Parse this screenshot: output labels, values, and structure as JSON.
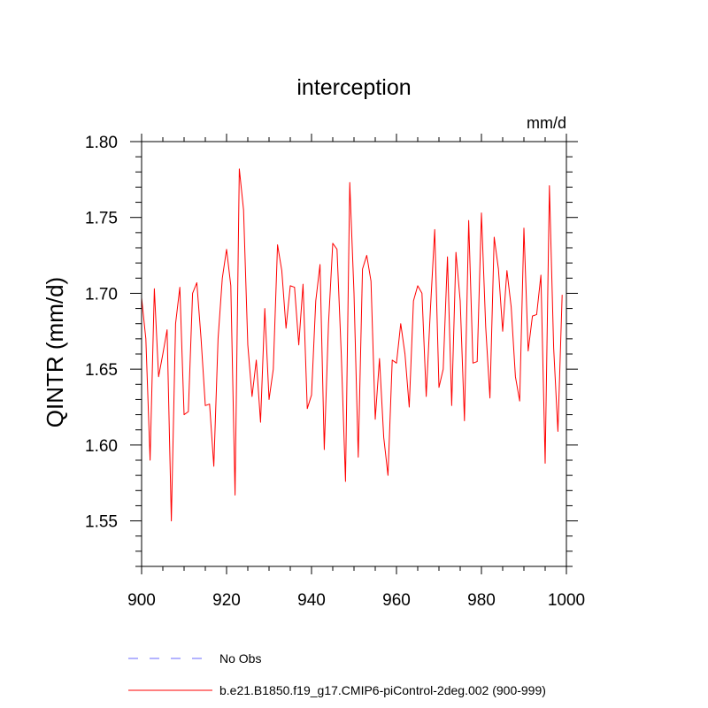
{
  "chart_data": {
    "type": "line",
    "title": "interception",
    "units_label": "mm/d",
    "ylabel": "QINTR  (mm/d)",
    "xlabel": "",
    "xlim": [
      900,
      1000
    ],
    "ylim": [
      1.52,
      1.8
    ],
    "x_ticks": [
      900,
      920,
      940,
      960,
      980,
      1000
    ],
    "x_tick_labels": [
      "900",
      "920",
      "940",
      "960",
      "980",
      "1000"
    ],
    "y_ticks": [
      1.55,
      1.6,
      1.65,
      1.7,
      1.75,
      1.8
    ],
    "y_tick_labels": [
      "1.55",
      "1.60",
      "1.65",
      "1.70",
      "1.75",
      "1.80"
    ],
    "grid": false,
    "legend_placement": "bottom",
    "legend": [
      {
        "label": "No Obs",
        "color": "#6a6aff",
        "style": "dashed"
      },
      {
        "label": "b.e21.B1850.f19_g17.CMIP6-piControl-2deg.002 (900-999)",
        "color": "#ff0000",
        "style": "solid"
      }
    ],
    "series": [
      {
        "name": "b.e21.B1850.f19_g17.CMIP6-piControl-2deg.002 (900-999)",
        "color": "#ff0000",
        "x": [
          900,
          901,
          902,
          903,
          904,
          905,
          906,
          907,
          908,
          909,
          910,
          911,
          912,
          913,
          914,
          915,
          916,
          917,
          918,
          919,
          920,
          921,
          922,
          923,
          924,
          925,
          926,
          927,
          928,
          929,
          930,
          931,
          932,
          933,
          934,
          935,
          936,
          937,
          938,
          939,
          940,
          941,
          942,
          943,
          944,
          945,
          946,
          947,
          948,
          949,
          950,
          951,
          952,
          953,
          954,
          955,
          956,
          957,
          958,
          959,
          960,
          961,
          962,
          963,
          964,
          965,
          966,
          967,
          968,
          969,
          970,
          971,
          972,
          973,
          974,
          975,
          976,
          977,
          978,
          979,
          980,
          981,
          982,
          983,
          984,
          985,
          986,
          987,
          988,
          989,
          990,
          991,
          992,
          993,
          994,
          995,
          996,
          997,
          998,
          999
        ],
        "values": [
          1.697,
          1.67,
          1.59,
          1.703,
          1.645,
          1.66,
          1.676,
          1.55,
          1.68,
          1.704,
          1.62,
          1.622,
          1.7,
          1.707,
          1.67,
          1.626,
          1.627,
          1.586,
          1.67,
          1.71,
          1.729,
          1.705,
          1.567,
          1.782,
          1.755,
          1.666,
          1.632,
          1.656,
          1.615,
          1.69,
          1.63,
          1.65,
          1.732,
          1.715,
          1.677,
          1.705,
          1.704,
          1.666,
          1.706,
          1.624,
          1.633,
          1.695,
          1.719,
          1.597,
          1.68,
          1.733,
          1.729,
          1.66,
          1.576,
          1.773,
          1.7,
          1.592,
          1.716,
          1.725,
          1.708,
          1.617,
          1.657,
          1.605,
          1.58,
          1.656,
          1.654,
          1.68,
          1.66,
          1.625,
          1.695,
          1.705,
          1.7,
          1.632,
          1.69,
          1.742,
          1.638,
          1.65,
          1.724,
          1.626,
          1.727,
          1.695,
          1.616,
          1.748,
          1.654,
          1.655,
          1.753,
          1.678,
          1.631,
          1.737,
          1.716,
          1.675,
          1.715,
          1.691,
          1.645,
          1.629,
          1.743,
          1.662,
          1.685,
          1.686,
          1.712,
          1.588,
          1.771,
          1.664,
          1.609,
          1.699
        ]
      }
    ]
  }
}
